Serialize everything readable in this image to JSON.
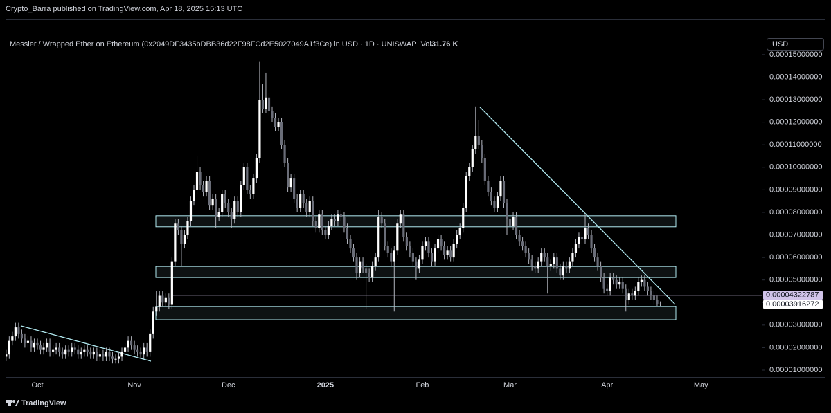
{
  "header": {
    "publisher": "Crypto_Barra published on TradingView.com, Apr 18, 2025 15:13 UTC"
  },
  "footer": {
    "brand": "TradingView"
  },
  "chart_data": {
    "type": "candlestick",
    "title": "Messier / Wrapped Ether on Ethereum (0x2049DF3435bDBB36d22F98FCd2E5027049A1f3Ce) in USD · 1D · UNISWAP",
    "volume_label": "Vol",
    "volume": "31.76 K",
    "currency": "USD",
    "categories": [
      null,
      null,
      null,
      null,
      null,
      null,
      null,
      null,
      null,
      null,
      "Oct",
      null,
      null,
      null,
      null,
      null,
      null,
      null,
      null,
      null,
      null,
      null,
      null,
      null,
      null,
      null,
      null,
      null,
      null,
      null,
      null,
      null,
      null,
      null,
      null,
      null,
      null,
      null,
      null,
      null,
      null,
      "Nov",
      null,
      null,
      null,
      null,
      null,
      null,
      null,
      null,
      null,
      null,
      null,
      null,
      null,
      null,
      null,
      null,
      null,
      null,
      null,
      null,
      null,
      null,
      null,
      null,
      null,
      null,
      null,
      null,
      null,
      "Dec",
      null,
      null,
      null,
      null,
      null,
      null,
      null,
      null,
      null,
      null,
      null,
      null,
      null,
      null,
      null,
      null,
      null,
      null,
      null,
      null,
      null,
      null,
      null,
      null,
      null,
      null,
      null,
      null,
      null,
      null,
      "2025",
      null,
      null,
      null,
      null,
      null,
      null,
      null,
      null,
      null,
      null,
      null,
      null,
      null,
      null,
      null,
      null,
      null,
      null,
      null,
      null,
      null,
      null,
      null,
      null,
      null,
      null,
      null,
      null,
      null,
      null,
      "Feb",
      null,
      null,
      null,
      null,
      null,
      null,
      null,
      null,
      null,
      null,
      null,
      null,
      null,
      null,
      null,
      null,
      null,
      null,
      null,
      null,
      null,
      null,
      null,
      null,
      null,
      null,
      null,
      "Mar",
      null,
      null,
      null,
      null,
      null,
      null,
      null,
      null,
      null,
      null,
      null,
      null,
      null,
      null,
      null,
      null,
      null,
      null,
      null,
      null,
      null,
      null,
      null,
      null,
      null,
      null,
      null,
      null,
      null,
      null,
      "Apr",
      null,
      null,
      null,
      null,
      null,
      null,
      null,
      null,
      null,
      null,
      null,
      null,
      null,
      null,
      null,
      null,
      null,
      null,
      null,
      null,
      null,
      null,
      null,
      null,
      null,
      null,
      null,
      null,
      null,
      "May",
      null,
      null,
      null,
      null
    ],
    "open": [
      1.6e-05,
      1.7e-05,
      2.3e-05,
      2.5e-05,
      2.9e-05,
      2.6e-05,
      2.4e-05,
      2.2e-05,
      2.3e-05,
      2e-05,
      2.2e-05,
      2.1e-05,
      1.9e-05,
      2e-05,
      2.2e-05,
      1.8e-05,
      1.9e-05,
      2e-05,
      1.8e-05,
      1.7e-05,
      1.9e-05,
      1.8e-05,
      2e-05,
      1.9e-05,
      1.7e-05,
      1.8e-05,
      1.9e-05,
      1.8e-05,
      1.7e-05,
      1.8e-05,
      1.6e-05,
      1.7e-05,
      1.6e-05,
      1.8e-05,
      1.6e-05,
      1.5e-05,
      1.5e-05,
      1.6e-05,
      1.8e-05,
      2e-05,
      2.3e-05,
      2.1e-05,
      1.9e-05,
      1.8e-05,
      1.7e-05,
      2e-05,
      1.8e-05,
      2.6e-05,
      3.6e-05,
      3.8e-05,
      4.3e-05,
      4e-05,
      4.2e-05,
      3.9e-05,
      5.8e-05,
      7.5e-05,
      7.2e-05,
      6.6e-05,
      7e-05,
      7.6e-05,
      8.5e-05,
      9e-05,
      9.8e-05,
      9.2e-05,
      8.9e-05,
      9.4e-05,
      8.3e-05,
      8.6e-05,
      7.8e-05,
      8e-05,
      8.8e-05,
      8.4e-05,
      8e-05,
      7.7e-05,
      8.5e-05,
      8e-05,
      9.2e-05,
      0.0001,
      9e-05,
      8.8e-05,
      9.5e-05,
      0.000104,
      0.00013,
      0.000126,
      0.000131,
      0.000125,
      0.000122,
      0.000118,
      0.00012,
      0.00011,
      0.000102,
      9.1e-05,
      9.5e-05,
      8.6e-05,
      8.2e-05,
      8.8e-05,
      8.4e-05,
      8e-05,
      8.5e-05,
      7.6e-05,
      7.3e-05,
      7.9e-05,
      7.2e-05,
      7e-05,
      7.4e-05,
      7.7e-05,
      7.6e-05,
      7.9e-05,
      7.8e-05,
      7.3e-05,
      6.8e-05,
      6.4e-05,
      6e-05,
      5.3e-05,
      5.8e-05,
      5.5e-05,
      5.3e-05,
      5.1e-05,
      5.6e-05,
      6e-05,
      7.8e-05,
      7.5e-05,
      6.5e-05,
      6.2e-05,
      5.8e-05,
      6.3e-05,
      7.5e-05,
      7.9e-05,
      6.9e-05,
      6.5e-05,
      6.2e-05,
      5.8e-05,
      5.5e-05,
      5.9e-05,
      6.5e-05,
      6.7e-05,
      6.2e-05,
      5.8e-05,
      6.4e-05,
      6.8e-05,
      6.5e-05,
      6.1e-05,
      6.3e-05,
      6e-05,
      6.6e-05,
      7e-05,
      7.3e-05,
      8.2e-05,
      9.6e-05,
      0.0001,
      0.000108,
      0.000114,
      0.00011,
      0.000104,
      9.4e-05,
      8.9e-05,
      8.5e-05,
      8.2e-05,
      8.7e-05,
      9.4e-05,
      8.4e-05,
      7.7e-05,
      7.4e-05,
      7.8e-05,
      7e-05,
      6.7e-05,
      6.5e-05,
      6.2e-05,
      5.9e-05,
      5.6e-05,
      5.5e-05,
      5.8e-05,
      6.2e-05,
      6e-05,
      5.6e-05,
      5.7e-05,
      6e-05,
      5.5e-05,
      5.2e-05,
      5.6e-05,
      5.5e-05,
      5.8e-05,
      6.2e-05,
      6.6e-05,
      6.9e-05,
      6.8e-05,
      7.3e-05,
      7e-05,
      6.4e-05,
      6e-05,
      5.6e-05,
      5.1e-05,
      4.6e-05,
      4.5e-05,
      5.1e-05,
      5e-05,
      4.8e-05,
      4.9e-05,
      4.6e-05,
      4.1e-05,
      4.4e-05,
      4.3e-05,
      4.5e-05,
      4.9e-05,
      5e-05,
      4.7e-05,
      4.5e-05,
      4.3e-05,
      4.1e-05,
      3.95e-05,
      null,
      null,
      null,
      null,
      null,
      null,
      null,
      null,
      null,
      null,
      null,
      null,
      null,
      null,
      null,
      null,
      null
    ],
    "high": [
      1.9e-05,
      2.5e-05,
      2.7e-05,
      3.1e-05,
      3.1e-05,
      2.8e-05,
      2.6e-05,
      2.5e-05,
      2.5e-05,
      2.4e-05,
      2.4e-05,
      2.3e-05,
      2.2e-05,
      2.4e-05,
      2.4e-05,
      2.1e-05,
      2.2e-05,
      2.2e-05,
      2e-05,
      2.1e-05,
      2.1e-05,
      2.2e-05,
      2.2e-05,
      2.1e-05,
      2e-05,
      2.1e-05,
      2.1e-05,
      2e-05,
      2e-05,
      2e-05,
      1.9e-05,
      1.9e-05,
      2e-05,
      2e-05,
      1.8e-05,
      1.7e-05,
      1.8e-05,
      2e-05,
      2.2e-05,
      2.5e-05,
      2.5e-05,
      2.3e-05,
      2.1e-05,
      2e-05,
      2.2e-05,
      2.2e-05,
      2.8e-05,
      3.8e-05,
      4.5e-05,
      4.5e-05,
      4.5e-05,
      4.4e-05,
      4.4e-05,
      6e-05,
      7.7e-05,
      7.7e-05,
      7.4e-05,
      7.2e-05,
      7.8e-05,
      8.7e-05,
      9.2e-05,
      0.000105,
      0.0001,
      9.4e-05,
      9.6e-05,
      9.6e-05,
      8.8e-05,
      8.8e-05,
      8.2e-05,
      9e-05,
      9e-05,
      8.6e-05,
      8.2e-05,
      8.7e-05,
      8.7e-05,
      9.4e-05,
      0.000102,
      0.000102,
      9.2e-05,
      9.7e-05,
      0.000106,
      0.000147,
      0.000137,
      0.000142,
      0.000133,
      0.000127,
      0.000124,
      0.000122,
      0.000122,
      0.000112,
      0.000104,
      9.7e-05,
      9.7e-05,
      8.8e-05,
      9e-05,
      9e-05,
      8.6e-05,
      8.7e-05,
      8.7e-05,
      7.8e-05,
      8.1e-05,
      8.1e-05,
      7.4e-05,
      7.6e-05,
      7.9e-05,
      7.9e-05,
      8.1e-05,
      8.1e-05,
      8e-05,
      7.5e-05,
      7e-05,
      6.6e-05,
      6.2e-05,
      6e-05,
      6e-05,
      5.7e-05,
      5.5e-05,
      5.8e-05,
      6.2e-05,
      8.1e-05,
      8e-05,
      7.7e-05,
      6.7e-05,
      6.4e-05,
      6.5e-05,
      7.7e-05,
      8.1e-05,
      8.1e-05,
      7.1e-05,
      6.7e-05,
      6.4e-05,
      6e-05,
      6.1e-05,
      6.7e-05,
      6.9e-05,
      6.9e-05,
      6.4e-05,
      6.6e-05,
      7e-05,
      7e-05,
      6.7e-05,
      6.5e-05,
      6.5e-05,
      6.8e-05,
      7.2e-05,
      7.5e-05,
      8.4e-05,
      9.8e-05,
      0.000102,
      0.00011,
      0.000127,
      0.000121,
      0.000112,
      0.000106,
      9.6e-05,
      9.1e-05,
      8.7e-05,
      8.9e-05,
      9.6e-05,
      9.6e-05,
      8.6e-05,
      7.9e-05,
      8e-05,
      8e-05,
      7.2e-05,
      6.9e-05,
      6.7e-05,
      6.4e-05,
      6.1e-05,
      5.8e-05,
      6e-05,
      6.4e-05,
      6.4e-05,
      6.2e-05,
      5.9e-05,
      6.2e-05,
      6.2e-05,
      5.7e-05,
      5.8e-05,
      5.8e-05,
      6e-05,
      6.4e-05,
      6.8e-05,
      7.1e-05,
      7.1e-05,
      7.9e-05,
      7.5e-05,
      7.2e-05,
      6.6e-05,
      6.2e-05,
      5.8e-05,
      5.3e-05,
      4.8e-05,
      5.3e-05,
      5.3e-05,
      5.2e-05,
      5.1e-05,
      5.1e-05,
      4.8e-05,
      4.6e-05,
      4.6e-05,
      4.7e-05,
      5.1e-05,
      5.2e-05,
      5.2e-05,
      4.9e-05,
      4.7e-05,
      4.5e-05,
      4.3e-05,
      4.05e-05,
      null,
      null,
      null,
      null,
      null,
      null,
      null,
      null,
      null,
      null,
      null,
      null,
      null,
      null,
      null,
      null,
      null
    ],
    "low": [
      1.4e-05,
      1.5e-05,
      2.1e-05,
      2.3e-05,
      2.4e-05,
      2.2e-05,
      2e-05,
      2e-05,
      1.8e-05,
      1.8e-05,
      1.9e-05,
      1.7e-05,
      1.7e-05,
      1.8e-05,
      1.6e-05,
      1.6e-05,
      1.7e-05,
      1.6e-05,
      1.5e-05,
      1.5e-05,
      1.6e-05,
      1.6e-05,
      1.7e-05,
      1.5e-05,
      1.5e-05,
      1.6e-05,
      1.6e-05,
      1.5e-05,
      1.5e-05,
      1.4e-05,
      1.4e-05,
      1.4e-05,
      1.4e-05,
      1.4e-05,
      1.3e-05,
      1.3e-05,
      1.3e-05,
      1.4e-05,
      1.6e-05,
      1.8e-05,
      1.9e-05,
      1.7e-05,
      1.6e-05,
      1.5e-05,
      1.5e-05,
      1.6e-05,
      1.6e-05,
      2.4e-05,
      3.4e-05,
      3.6e-05,
      3.8e-05,
      3.8e-05,
      3.7e-05,
      3.7e-05,
      5.6e-05,
      7e-05,
      5.6e-05,
      6.4e-05,
      6.8e-05,
      7.4e-05,
      8.3e-05,
      8.8e-05,
      9e-05,
      8.7e-05,
      8.7e-05,
      8.1e-05,
      8.1e-05,
      7.3e-05,
      7.6e-05,
      7.8e-05,
      8.2e-05,
      7.8e-05,
      7.3e-05,
      7.5e-05,
      7.8e-05,
      7.8e-05,
      9e-05,
      8.8e-05,
      8.6e-05,
      8.6e-05,
      9.3e-05,
      0.000102,
      0.000124,
      0.000124,
      0.000123,
      0.00012,
      0.000116,
      0.000116,
      0.000108,
      0.0001,
      8.9e-05,
      8.9e-05,
      8.4e-05,
      8e-05,
      8e-05,
      8.2e-05,
      7.8e-05,
      7.8e-05,
      7.4e-05,
      7.1e-05,
      7.1e-05,
      7e-05,
      6.8e-05,
      6.8e-05,
      7.2e-05,
      7.4e-05,
      7.4e-05,
      7.6e-05,
      7.1e-05,
      6.6e-05,
      6.2e-05,
      5.8e-05,
      5e-05,
      5.1e-05,
      5.3e-05,
      3.7e-05,
      4.9e-05,
      4.9e-05,
      5.4e-05,
      5.8e-05,
      7.3e-05,
      6.3e-05,
      6e-05,
      5.6e-05,
      3.6e-05,
      6.1e-05,
      7.3e-05,
      6.7e-05,
      6.3e-05,
      6e-05,
      5.6e-05,
      5e-05,
      5.3e-05,
      5.7e-05,
      6.3e-05,
      6e-05,
      5.6e-05,
      5.6e-05,
      6.2e-05,
      6.3e-05,
      5.9e-05,
      5.9e-05,
      5.8e-05,
      5.8e-05,
      6.4e-05,
      6.8e-05,
      7.1e-05,
      8e-05,
      9.4e-05,
      9.8e-05,
      0.000106,
      0.000108,
      0.000102,
      9.2e-05,
      8.7e-05,
      8.3e-05,
      8e-05,
      8e-05,
      8.5e-05,
      8.2e-05,
      7e-05,
      7.2e-05,
      7.2e-05,
      6.8e-05,
      6.5e-05,
      6.3e-05,
      6e-05,
      5.7e-05,
      5.4e-05,
      5.3e-05,
      5.3e-05,
      5.6e-05,
      5.8e-05,
      4.4e-05,
      5.4e-05,
      5.5e-05,
      5.3e-05,
      5e-05,
      5e-05,
      5.3e-05,
      5.3e-05,
      5.6e-05,
      6e-05,
      6.4e-05,
      6.6e-05,
      6.6e-05,
      6.8e-05,
      6.2e-05,
      5.8e-05,
      5.4e-05,
      4.9e-05,
      4.4e-05,
      4.3e-05,
      4.3e-05,
      4.8e-05,
      4.6e-05,
      4.6e-05,
      4.4e-05,
      3.6e-05,
      3.9e-05,
      4.1e-05,
      4.1e-05,
      4.3e-05,
      4.7e-05,
      4.5e-05,
      4.3e-05,
      4.1e-05,
      3.9e-05,
      3.85e-05,
      3.85e-05,
      null,
      null,
      null,
      null,
      null,
      null,
      null,
      null,
      null,
      null,
      null,
      null,
      null,
      null,
      null,
      null,
      null
    ],
    "close": [
      1.7e-05,
      2.3e-05,
      2.5e-05,
      2.9e-05,
      2.6e-05,
      2.4e-05,
      2.2e-05,
      2.3e-05,
      2e-05,
      2.2e-05,
      2.1e-05,
      1.9e-05,
      2e-05,
      2.2e-05,
      1.8e-05,
      1.9e-05,
      2e-05,
      1.8e-05,
      1.7e-05,
      1.9e-05,
      1.8e-05,
      2e-05,
      1.9e-05,
      1.7e-05,
      1.8e-05,
      1.9e-05,
      1.8e-05,
      1.7e-05,
      1.8e-05,
      1.6e-05,
      1.7e-05,
      1.6e-05,
      1.8e-05,
      1.6e-05,
      1.5e-05,
      1.5e-05,
      1.6e-05,
      1.8e-05,
      2e-05,
      2.3e-05,
      2.1e-05,
      1.9e-05,
      1.8e-05,
      1.7e-05,
      2e-05,
      1.8e-05,
      2.6e-05,
      3.6e-05,
      3.8e-05,
      4.3e-05,
      4e-05,
      4.2e-05,
      3.9e-05,
      5.8e-05,
      7.5e-05,
      7.2e-05,
      6.6e-05,
      7e-05,
      7.6e-05,
      8.5e-05,
      9e-05,
      9.8e-05,
      9.2e-05,
      8.9e-05,
      9.4e-05,
      8.3e-05,
      8.6e-05,
      7.8e-05,
      8e-05,
      8.8e-05,
      8.4e-05,
      8e-05,
      7.7e-05,
      8.5e-05,
      8e-05,
      9.2e-05,
      0.0001,
      9e-05,
      8.8e-05,
      9.5e-05,
      0.000104,
      0.00013,
      0.000126,
      0.000131,
      0.000125,
      0.000122,
      0.000118,
      0.00012,
      0.00011,
      0.000102,
      9.1e-05,
      9.5e-05,
      8.6e-05,
      8.2e-05,
      8.8e-05,
      8.4e-05,
      8e-05,
      8.5e-05,
      7.6e-05,
      7.3e-05,
      7.9e-05,
      7.2e-05,
      7e-05,
      7.4e-05,
      7.7e-05,
      7.6e-05,
      7.9e-05,
      7.8e-05,
      7.3e-05,
      6.8e-05,
      6.4e-05,
      6e-05,
      5.3e-05,
      5.8e-05,
      5.5e-05,
      5.3e-05,
      5.1e-05,
      5.6e-05,
      6e-05,
      7.8e-05,
      7.5e-05,
      6.5e-05,
      6.2e-05,
      5.8e-05,
      6.3e-05,
      7.5e-05,
      7.9e-05,
      6.9e-05,
      6.5e-05,
      6.2e-05,
      5.8e-05,
      5.5e-05,
      5.9e-05,
      6.5e-05,
      6.7e-05,
      6.2e-05,
      5.8e-05,
      6.4e-05,
      6.8e-05,
      6.5e-05,
      6.1e-05,
      6.3e-05,
      6e-05,
      6.6e-05,
      7e-05,
      7.3e-05,
      8.2e-05,
      9.6e-05,
      0.0001,
      0.000108,
      0.000114,
      0.00011,
      0.000104,
      9.4e-05,
      8.9e-05,
      8.5e-05,
      8.2e-05,
      8.7e-05,
      9.4e-05,
      8.4e-05,
      7.7e-05,
      7.4e-05,
      7.8e-05,
      7e-05,
      6.7e-05,
      6.5e-05,
      6.2e-05,
      5.9e-05,
      5.6e-05,
      5.5e-05,
      5.8e-05,
      6.2e-05,
      6e-05,
      5.6e-05,
      5.7e-05,
      6e-05,
      5.5e-05,
      5.2e-05,
      5.6e-05,
      5.5e-05,
      5.8e-05,
      6.2e-05,
      6.6e-05,
      6.9e-05,
      6.8e-05,
      7.3e-05,
      7e-05,
      6.4e-05,
      6e-05,
      5.6e-05,
      5.1e-05,
      4.6e-05,
      4.5e-05,
      5.1e-05,
      5e-05,
      4.8e-05,
      4.9e-05,
      4.6e-05,
      4.1e-05,
      4.4e-05,
      4.3e-05,
      4.5e-05,
      4.9e-05,
      5e-05,
      4.7e-05,
      4.5e-05,
      4.3e-05,
      4.1e-05,
      3.95e-05,
      3.916272e-05,
      null,
      null,
      null,
      null,
      null,
      null,
      null,
      null,
      null,
      null,
      null,
      null,
      null,
      null,
      null,
      null,
      null
    ],
    "up_color": "#ffffff",
    "down_color": "#6a6d78",
    "wick_color": "#b2b5be",
    "ylim": [
      6.93e-06,
      0.0001604
    ],
    "yticks": [
      {
        "value": 1e-05,
        "label": "0.00001000000"
      },
      {
        "value": 2e-05,
        "label": "0.00002000000"
      },
      {
        "value": 3e-05,
        "label": "0.00003000000"
      },
      {
        "value": 4e-05,
        "label": "0.00004000000"
      },
      {
        "value": 5e-05,
        "label": "0.00005000000"
      },
      {
        "value": 6e-05,
        "label": "0.00006000000"
      },
      {
        "value": 7e-05,
        "label": "0.00007000000"
      },
      {
        "value": 8e-05,
        "label": "0.00008000000"
      },
      {
        "value": 9e-05,
        "label": "0.00009000000"
      },
      {
        "value": 0.0001,
        "label": "0.00010000000"
      },
      {
        "value": 0.00011,
        "label": "0.00011000000"
      },
      {
        "value": 0.00012,
        "label": "0.00012000000"
      },
      {
        "value": 0.00013,
        "label": "0.00013000000"
      },
      {
        "value": 0.00014,
        "label": "0.00014000000"
      },
      {
        "value": 0.00015,
        "label": "0.00015000000"
      }
    ],
    "grid": false,
    "zones": [
      {
        "low": 7.36e-05,
        "high": 7.85e-05
      },
      {
        "low": 5.11e-05,
        "high": 5.6e-05
      },
      {
        "low": 3.24e-05,
        "high": 3.82e-05
      }
    ],
    "zone_color": "#b2ebf2",
    "trendlines": [
      {
        "start": 2.97e-05,
        "end": 1.4e-05
      },
      {
        "start": 0.0001267,
        "end": 3.92e-05
      }
    ],
    "price_line": {
      "value": 4.322787e-05,
      "label": "0.00004322787"
    },
    "last_price": {
      "value": 3.916272e-05,
      "label": "0.00003916272"
    }
  }
}
